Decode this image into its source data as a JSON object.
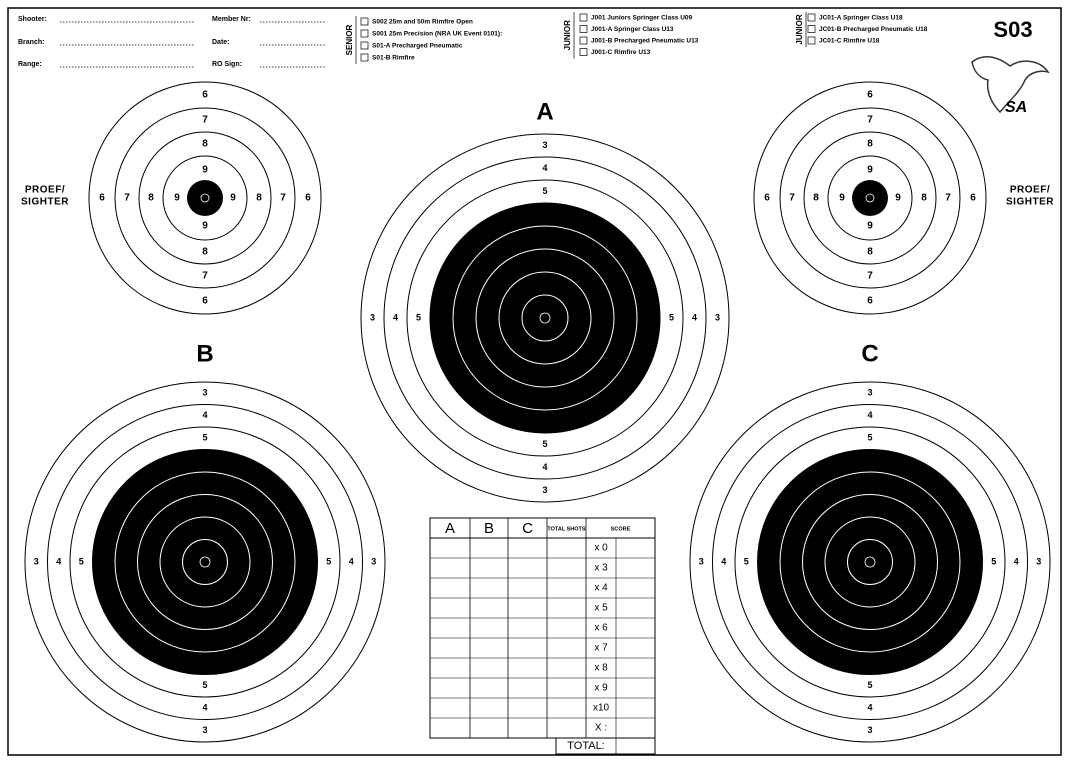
{
  "header": {
    "fields": [
      "Shooter:",
      "Member Nr:",
      "Branch:",
      "Date:",
      "Range:",
      "RO Sign:"
    ]
  },
  "groups": [
    {
      "label": "SENIOR",
      "options": [
        "S002 25m and 50m Rimfire Open",
        "S001 25m Precision (NRA UK Event 0101):",
        "S01-A Precharged Pneumatic",
        "S01-B Rimfire"
      ]
    },
    {
      "label": "JUNIOR",
      "options": [
        "J001 Juniors Springer Class U09",
        "J001-A Springer Class U13",
        "J001-B Precharged Pneumatic U13",
        "J001-C Rimfire U13"
      ]
    },
    {
      "label": "JUNIOR",
      "options": [
        "JC01-A Springer Class U18",
        "JC01-B Precharged Pneumatic U18",
        "JC01-C Rimfire U18"
      ]
    }
  ],
  "code": "S03",
  "logo": "SA",
  "sighter": {
    "label": [
      "PROEF/",
      "SIGHTER"
    ],
    "rings": [
      6,
      7,
      8,
      9
    ]
  },
  "targets": {
    "names": [
      "A",
      "B",
      "C"
    ],
    "rings": [
      3,
      4,
      5,
      6,
      7,
      8,
      9
    ]
  },
  "score_table": {
    "headers": [
      "A",
      "B",
      "C",
      "TOTAL SHOTS",
      "SCORE"
    ],
    "rows": [
      "x 0",
      "x 3",
      "x 4",
      "x 5",
      "x 6",
      "x 7",
      "x 8",
      "x 9",
      "x10",
      "X :"
    ],
    "total": "TOTAL:"
  }
}
